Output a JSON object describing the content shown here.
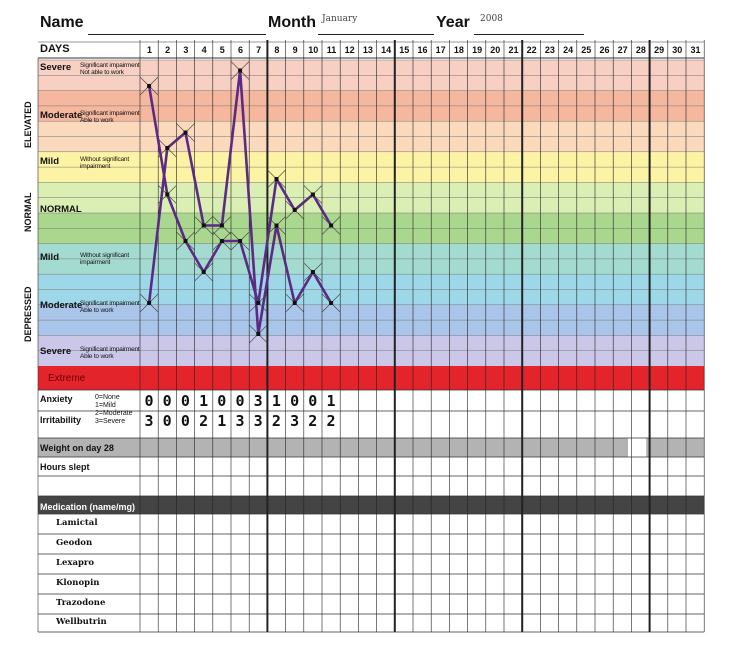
{
  "header": {
    "name_label": "Name",
    "month_label": "Month",
    "month_value": "January",
    "year_label": "Year",
    "year_value": "2008"
  },
  "days_label": "DAYS",
  "days": [
    "1",
    "2",
    "3",
    "4",
    "5",
    "6",
    "7",
    "8",
    "9",
    "10",
    "11",
    "12",
    "13",
    "14",
    "15",
    "16",
    "17",
    "18",
    "19",
    "20",
    "21",
    "22",
    "23",
    "24",
    "25",
    "26",
    "27",
    "28",
    "29",
    "30",
    "31"
  ],
  "side_labels": {
    "elevated": "ELEVATED",
    "normal": "NORMAL",
    "depressed": "DEPRESSED"
  },
  "levels": [
    {
      "name": "Severe",
      "desc": [
        "Significant impairment",
        "Not able to work"
      ]
    },
    {
      "name": "Moderate",
      "desc": [
        "Significant impairment",
        "Able to work"
      ]
    },
    {
      "name": "Mild",
      "desc": [
        "Without significant",
        "impairment"
      ]
    },
    {
      "name": "NORMAL",
      "desc": []
    },
    {
      "name": "Mild",
      "desc": [
        "Without significant",
        "impairment"
      ]
    },
    {
      "name": "Moderate",
      "desc": [
        "Significant impairment",
        "Able to work"
      ]
    },
    {
      "name": "Severe",
      "desc": [
        "Significant impairment",
        "Able to work"
      ]
    }
  ],
  "extreme_label": "Extreme",
  "band_colors": [
    "#f7cfc3",
    "#f5b79e",
    "#fbd9bd",
    "#fdf3a4",
    "#dbeeb4",
    "#a9d78e",
    "#a4dbd0",
    "#9ed8e8",
    "#aac5ea",
    "#cbc7e9"
  ],
  "extreme_color": "#e3242b",
  "line_color": "#5b2a86",
  "anxiety": {
    "label": "Anxiety",
    "key": [
      "0=None",
      "1=Mild"
    ],
    "values": [
      "0",
      "0",
      "0",
      "1",
      "0",
      "0",
      "3",
      "1",
      "0",
      "0",
      "1"
    ]
  },
  "irritability": {
    "label": "Irritability",
    "key": [
      "2=Moderate",
      "3=Severe"
    ],
    "values": [
      "3",
      "0",
      "0",
      "2",
      "1",
      "3",
      "3",
      "2",
      "3",
      "2",
      "2"
    ]
  },
  "weight_label": "Weight on day 28",
  "hours_label": "Hours slept",
  "medication_label": "Medication (name/mg)",
  "medications": [
    "Lamictal",
    "Geodon",
    "Lexapro",
    "Klonopin",
    "Trazodone",
    "Wellbutrin"
  ],
  "mood_series": [
    {
      "name": "",
      "points": [
        [
          1,
          -6
        ],
        [
          2,
          4
        ],
        [
          3,
          5
        ],
        [
          4,
          -1
        ],
        [
          5,
          -1
        ],
        [
          6,
          9
        ],
        [
          7,
          -8
        ],
        [
          8,
          -1
        ],
        [
          9,
          -6
        ],
        [
          10,
          -4
        ],
        [
          11,
          -6
        ]
      ]
    },
    {
      "name": "",
      "points": [
        [
          1,
          8
        ],
        [
          2,
          1
        ],
        [
          3,
          -2
        ],
        [
          4,
          -4
        ],
        [
          5,
          -2
        ],
        [
          6,
          -2
        ],
        [
          7,
          -6
        ],
        [
          8,
          2
        ],
        [
          9,
          0
        ],
        [
          10,
          1
        ],
        [
          11,
          -1
        ]
      ]
    }
  ]
}
